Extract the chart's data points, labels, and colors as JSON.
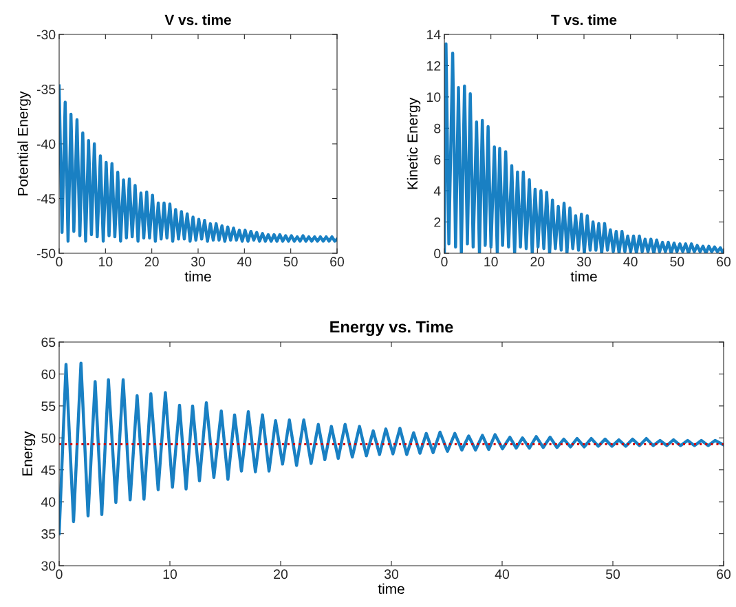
{
  "chart_data": [
    {
      "type": "line",
      "title": "V vs. time",
      "xlabel": "time",
      "ylabel": "Potential Energy",
      "xlim": [
        0,
        60
      ],
      "xticks": [
        0,
        10,
        20,
        30,
        40,
        50,
        60
      ],
      "ylim": [
        -50,
        -30
      ],
      "yticks": [
        -50,
        -45,
        -40,
        -35,
        -30
      ],
      "grid": false,
      "line_style": "solid",
      "series": [
        {
          "color": "#0072bd",
          "x": [
            0,
            0.62,
            1.3,
            1.92,
            2.55,
            3.17,
            3.85,
            4.47,
            5.1,
            5.72,
            6.35,
            6.97,
            7.6,
            8.22,
            8.9,
            9.52,
            10.15,
            10.77,
            11.4,
            12.02,
            12.65,
            13.27,
            13.9,
            14.52,
            15.15,
            15.77,
            16.4,
            17.02,
            17.65,
            18.27,
            18.9,
            19.52,
            20.15,
            20.77,
            21.4,
            22.02,
            22.65,
            23.27,
            23.9,
            24.52,
            25.15,
            25.77,
            26.4,
            27.02,
            27.65,
            28.27,
            28.9,
            29.52,
            30.15,
            30.77,
            31.4,
            32.02,
            32.65,
            33.27,
            33.9,
            34.52,
            35.15,
            35.77,
            36.4,
            37.02,
            37.65,
            38.27,
            38.9,
            39.52,
            40.15,
            40.77,
            41.4,
            42.02,
            42.65,
            43.27,
            43.9,
            44.52,
            45.15,
            45.77,
            46.4,
            47.02,
            47.65,
            48.27,
            48.9,
            49.52,
            50.15,
            50.77,
            51.4,
            52.02,
            52.65,
            53.27,
            53.9,
            54.52,
            55.15,
            55.77,
            56.4,
            57.02,
            57.65,
            58.27,
            58.9,
            59.52,
            60
          ],
          "values": [
            -34.7,
            -48.1,
            -36.2,
            -48.9,
            -37.3,
            -48.0,
            -37.8,
            -48.4,
            -39.0,
            -48.9,
            -39.7,
            -48.3,
            -40.0,
            -48.5,
            -41.1,
            -48.9,
            -41.7,
            -48.4,
            -41.8,
            -48.5,
            -42.6,
            -48.9,
            -43.3,
            -48.6,
            -43.2,
            -48.5,
            -43.8,
            -48.9,
            -44.5,
            -48.6,
            -44.4,
            -48.6,
            -44.7,
            -48.9,
            -45.4,
            -48.7,
            -45.4,
            -48.6,
            -45.5,
            -48.9,
            -46.0,
            -48.7,
            -46.2,
            -48.7,
            -46.4,
            -48.9,
            -46.7,
            -48.8,
            -46.9,
            -48.7,
            -47.0,
            -48.9,
            -47.3,
            -48.8,
            -47.3,
            -48.8,
            -47.5,
            -48.9,
            -47.6,
            -48.8,
            -47.7,
            -48.8,
            -47.9,
            -48.9,
            -47.9,
            -48.9,
            -48.0,
            -48.8,
            -48.1,
            -48.9,
            -48.2,
            -48.9,
            -48.3,
            -48.9,
            -48.3,
            -48.9,
            -48.3,
            -48.9,
            -48.4,
            -48.9,
            -48.4,
            -48.9,
            -48.5,
            -48.9,
            -48.4,
            -48.9,
            -48.5,
            -48.9,
            -48.5,
            -48.9,
            -48.5,
            -48.9,
            -48.5,
            -48.9,
            -48.5,
            -48.9,
            -48.7
          ]
        }
      ]
    },
    {
      "type": "line",
      "title": "T vs. time",
      "xlabel": "time",
      "ylabel": "Kinetic Energy",
      "xlim": [
        0,
        60
      ],
      "xticks": [
        0,
        10,
        20,
        30,
        40,
        50,
        60
      ],
      "ylim": [
        0,
        14
      ],
      "yticks": [
        0,
        2,
        4,
        6,
        8,
        10,
        12,
        14
      ],
      "grid": false,
      "line_style": "solid",
      "series": [
        {
          "color": "#0072bd",
          "x": [
            0,
            0.35,
            0.97,
            1.79,
            2.41,
            3.03,
            3.65,
            4.33,
            4.95,
            5.57,
            6.19,
            6.92,
            7.54,
            8.16,
            8.78,
            9.4,
            10.02,
            10.75,
            11.37,
            11.89,
            12.51,
            13.18,
            13.8,
            14.48,
            15.1,
            15.72,
            16.34,
            16.97,
            17.59,
            18.26,
            18.88,
            19.5,
            20.12,
            20.75,
            21.37,
            21.99,
            22.61,
            23.23,
            23.85,
            24.48,
            25.1,
            25.72,
            26.34,
            26.97,
            27.59,
            28.21,
            28.83,
            29.45,
            30.07,
            30.7,
            31.32,
            31.94,
            32.56,
            33.18,
            33.8,
            34.43,
            35.05,
            35.67,
            36.29,
            36.92,
            37.54,
            38.16,
            38.78,
            39.4,
            40.02,
            40.65,
            41.27,
            41.89,
            42.51,
            43.13,
            43.75,
            44.38,
            45.0,
            45.62,
            46.24,
            46.87,
            47.49,
            48.11,
            48.73,
            49.35,
            49.97,
            50.6,
            51.22,
            51.84,
            52.46,
            53.08,
            53.7,
            54.33,
            54.95,
            55.57,
            56.19,
            56.82,
            57.44,
            58.06,
            58.68,
            59.3,
            59.92
          ],
          "values": [
            0,
            13.4,
            0.6,
            12.8,
            0.4,
            10.6,
            0,
            10.7,
            0.6,
            10.2,
            0.4,
            8.4,
            0,
            8.5,
            0.5,
            8.1,
            0.4,
            6.8,
            0,
            6.7,
            0.5,
            6.5,
            0.4,
            5.6,
            0,
            5.2,
            0.4,
            5.2,
            0.3,
            4.7,
            0,
            4.1,
            0.4,
            4.0,
            0.3,
            3.9,
            0,
            3.4,
            0.3,
            3.0,
            0.2,
            3.2,
            0,
            2.9,
            0.3,
            2.4,
            0.2,
            2.5,
            0,
            2.4,
            0.2,
            2.0,
            0.2,
            1.9,
            0,
            1.9,
            0.2,
            1.5,
            0.1,
            1.4,
            0,
            1.4,
            0.1,
            1.1,
            0.1,
            1.1,
            0,
            1.1,
            0.1,
            0.9,
            0.1,
            0.9,
            0,
            0.85,
            0.1,
            0.7,
            0.1,
            0.7,
            0,
            0.65,
            0.1,
            0.6,
            0.1,
            0.6,
            0,
            0.6,
            0.1,
            0.5,
            0.1,
            0.45,
            0,
            0.45,
            0.1,
            0.4,
            0.1,
            0.35,
            0
          ]
        }
      ]
    },
    {
      "type": "line",
      "title": "Energy vs. Time",
      "xlabel": "time",
      "ylabel": "Energy",
      "xlim": [
        0,
        60
      ],
      "xticks": [
        0,
        10,
        20,
        30,
        40,
        50,
        60
      ],
      "ylim": [
        30,
        65
      ],
      "yticks": [
        30,
        35,
        40,
        45,
        50,
        55,
        60,
        65
      ],
      "grid": false,
      "line_style": "solid",
      "ref_lines": [
        {
          "axis": "y",
          "value": 49,
          "color": "#d40000",
          "line_style": "dotted"
        }
      ],
      "series": [
        {
          "color": "#0072bd",
          "x": [
            0,
            0.62,
            1.3,
            1.97,
            2.61,
            3.25,
            3.85,
            4.45,
            5.12,
            5.78,
            6.41,
            7.04,
            7.66,
            8.28,
            8.94,
            9.59,
            10.23,
            10.87,
            11.46,
            12.05,
            12.67,
            13.29,
            13.97,
            14.64,
            15.24,
            15.84,
            16.46,
            17.08,
            17.72,
            18.36,
            18.95,
            19.54,
            20.17,
            20.79,
            21.44,
            22.09,
            22.75,
            23.4,
            23.99,
            24.58,
            25.2,
            25.82,
            26.47,
            27.12,
            27.74,
            28.36,
            28.93,
            29.5,
            30.14,
            30.77,
            31.39,
            32.01,
            32.58,
            33.15,
            33.77,
            34.39,
            35.06,
            35.73,
            36.36,
            36.98,
            37.6,
            38.22,
            38.79,
            39.36,
            40.03,
            40.7,
            41.27,
            41.84,
            42.46,
            43.08,
            43.71,
            44.33,
            44.95,
            45.57,
            46.17,
            46.77,
            47.41,
            48.05,
            48.68,
            49.3,
            49.92,
            50.54,
            51.16,
            51.78,
            52.4,
            53.02,
            53.64,
            54.26,
            54.87,
            55.47,
            56.11,
            56.75,
            57.37,
            57.99,
            58.61,
            59.23,
            60
          ],
          "values": [
            35,
            61.5,
            36.9,
            61.7,
            37.8,
            58.8,
            38.0,
            59.1,
            39.9,
            59.1,
            40.3,
            56.6,
            40.4,
            56.9,
            41.9,
            57.1,
            42.3,
            55.1,
            42.0,
            55.0,
            43.3,
            55.5,
            43.8,
            54.2,
            43.5,
            53.6,
            44.8,
            54.1,
            44.7,
            53.6,
            44.8,
            52.7,
            45.9,
            52.8,
            45.7,
            52.8,
            46.0,
            52.1,
            46.6,
            51.8,
            46.8,
            52.1,
            47.0,
            51.8,
            47.2,
            51.1,
            47.4,
            51.4,
            47.5,
            51.5,
            47.4,
            50.8,
            47.6,
            50.7,
            47.7,
            50.9,
            47.9,
            50.7,
            48.1,
            50.3,
            48.1,
            50.4,
            48.2,
            50.5,
            48.3,
            50.1,
            48.4,
            50.0,
            48.4,
            50.2,
            48.5,
            50.1,
            48.5,
            49.8,
            48.6,
            49.9,
            48.6,
            49.9,
            48.7,
            49.8,
            48.7,
            49.7,
            48.7,
            49.8,
            48.8,
            49.9,
            48.8,
            49.6,
            48.8,
            49.7,
            48.8,
            49.6,
            48.8,
            49.6,
            48.8,
            49.6,
            48.9
          ]
        }
      ]
    }
  ]
}
